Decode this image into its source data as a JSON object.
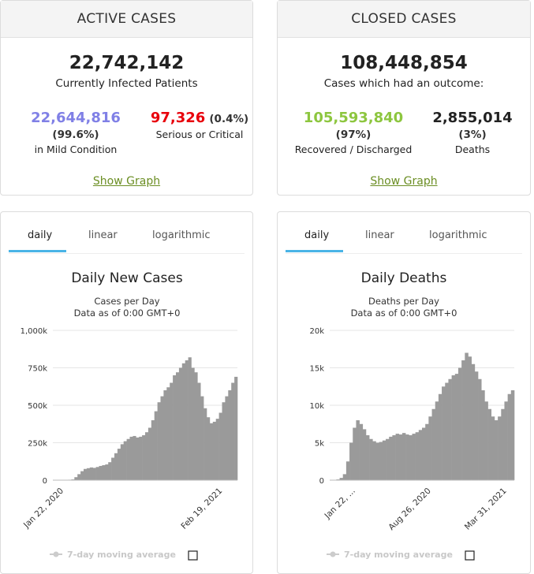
{
  "active_cases": {
    "header": "ACTIVE CASES",
    "total": "22,742,142",
    "total_label": "Currently Infected Patients",
    "mild_value": "22,644,816",
    "mild_pct": "(99.6%)",
    "mild_label": "in Mild Condition",
    "serious_value": "97,326",
    "serious_pct": "(0.4%)",
    "serious_label": "Serious or Critical",
    "show_graph": "Show Graph"
  },
  "closed_cases": {
    "header": "CLOSED CASES",
    "total": "108,448,854",
    "total_label": "Cases which had an outcome:",
    "recovered_value": "105,593,840",
    "recovered_pct": "(97%)",
    "recovered_label": "Recovered / Discharged",
    "deaths_value": "2,855,014",
    "deaths_pct": "(3%)",
    "deaths_label": "Deaths",
    "show_graph": "Show Graph"
  },
  "tabs": [
    "daily",
    "linear",
    "logarithmic"
  ],
  "colors": {
    "mild": "#8080e6",
    "serious": "#e8000b",
    "recovered": "#8dc63f",
    "link": "#6b8e23",
    "tab_underline": "#49b4e6",
    "bars": "#9a9a9a"
  },
  "legend_label": "7-day moving average",
  "chart_data": [
    {
      "type": "bar",
      "title": "Daily New Cases",
      "subtitle": "Cases per Day",
      "note": "Data as of 0:00 GMT+0",
      "yticks": [
        "1,000k",
        "750k",
        "500k",
        "250k",
        "0"
      ],
      "ylim": [
        0,
        1000000
      ],
      "xtick_labels": [
        "Jan 22, 2020",
        "Feb 19, 2021"
      ],
      "x_range": [
        "2020-01-22",
        "2021-03-11"
      ],
      "grid": true,
      "legend": "bottom",
      "series": [
        {
          "values": [
            0,
            0,
            2000,
            2000,
            2500,
            3000,
            5000,
            20000,
            40000,
            60000,
            75000,
            80000,
            85000,
            82000,
            88000,
            95000,
            100000,
            105000,
            120000,
            150000,
            180000,
            210000,
            240000,
            260000,
            275000,
            290000,
            295000,
            285000,
            290000,
            300000,
            320000,
            350000,
            400000,
            460000,
            520000,
            560000,
            600000,
            620000,
            650000,
            700000,
            720000,
            750000,
            780000,
            800000,
            820000,
            750000,
            720000,
            650000,
            560000,
            480000,
            420000,
            380000,
            390000,
            410000,
            450000,
            520000,
            560000,
            600000,
            650000,
            690000
          ]
        }
      ]
    },
    {
      "type": "bar",
      "title": "Daily Deaths",
      "subtitle": "Deaths per Day",
      "note": "Data as of 0:00 GMT+0",
      "yticks": [
        "20k",
        "15k",
        "10k",
        "5k",
        "0"
      ],
      "ylim": [
        0,
        20000
      ],
      "xtick_labels": [
        "Jan 22, ...",
        "Aug 26, 2020",
        "Mar 31, 2021"
      ],
      "x_range": [
        "2020-01-22",
        "2021-04-03"
      ],
      "grid": true,
      "legend": "bottom",
      "series": [
        {
          "values": [
            0,
            0,
            100,
            300,
            800,
            2500,
            5000,
            7000,
            8000,
            7500,
            6800,
            6000,
            5500,
            5200,
            5000,
            5100,
            5300,
            5500,
            5800,
            6000,
            6200,
            6100,
            6300,
            6100,
            6000,
            6200,
            6400,
            6700,
            7000,
            7500,
            8500,
            9500,
            10500,
            11500,
            12500,
            13000,
            13500,
            14000,
            14200,
            15000,
            16000,
            17000,
            16500,
            15500,
            14500,
            13500,
            12000,
            10500,
            9500,
            8500,
            8000,
            8500,
            9500,
            10500,
            11500,
            12000
          ]
        }
      ]
    }
  ]
}
